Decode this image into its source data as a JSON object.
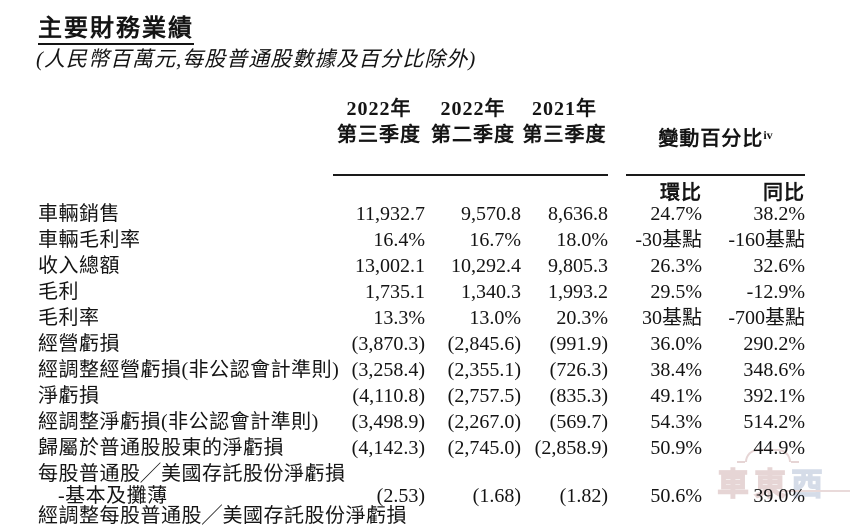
{
  "page": {
    "title": "主要財務業績",
    "subtitle": "(人民幣百萬元,每股普通股數據及百分比除外)"
  },
  "table": {
    "col_headers": [
      {
        "line1": "2022年",
        "line2": "第三季度"
      },
      {
        "line1": "2022年",
        "line2": "第二季度"
      },
      {
        "line1": "2021年",
        "line2": "第三季度"
      }
    ],
    "change_header": {
      "label": "變動百分比",
      "footnote": "iv"
    },
    "sub_headers": [
      "環比",
      "同比"
    ],
    "rows": [
      {
        "label": "車輛銷售",
        "values": [
          "11,932.7",
          "9,570.8",
          "8,636.8",
          "24.7%",
          "38.2%"
        ]
      },
      {
        "label": "車輛毛利率",
        "values": [
          "16.4%",
          "16.7%",
          "18.0%",
          "-30基點",
          "-160基點"
        ]
      },
      {
        "label": "收入總額",
        "values": [
          "13,002.1",
          "10,292.4",
          "9,805.3",
          "26.3%",
          "32.6%"
        ]
      },
      {
        "label": "毛利",
        "values": [
          "1,735.1",
          "1,340.3",
          "1,993.2",
          "29.5%",
          "-12.9%"
        ]
      },
      {
        "label": "毛利率",
        "values": [
          "13.3%",
          "13.0%",
          "20.3%",
          "30基點",
          "-700基點"
        ]
      },
      {
        "label": "經營虧損",
        "values": [
          "(3,870.3)",
          "(2,845.6)",
          "(991.9)",
          "36.0%",
          "290.2%"
        ]
      },
      {
        "label": "經調整經營虧損(非公認會計準則)",
        "values": [
          "(3,258.4)",
          "(2,355.1)",
          "(726.3)",
          "38.4%",
          "348.6%"
        ]
      },
      {
        "label": "淨虧損",
        "values": [
          "(4,110.8)",
          "(2,757.5)",
          "(835.3)",
          "49.1%",
          "392.1%"
        ]
      },
      {
        "label": "經調整淨虧損(非公認會計準則)",
        "values": [
          "(3,498.9)",
          "(2,267.0)",
          "(569.7)",
          "54.3%",
          "514.2%"
        ]
      },
      {
        "label": "歸屬於普通股股東的淨虧損",
        "values": [
          "(4,142.3)",
          "(2,745.0)",
          "(2,858.9)",
          "50.9%",
          "44.9%"
        ]
      },
      {
        "label": "每股普通股╱美國存託股份淨虧損",
        "values": [
          "",
          "",
          "",
          "",
          ""
        ]
      },
      {
        "label": "-基本及攤薄",
        "values": [
          "(2.53)",
          "(1.68)",
          "(1.82)",
          "50.6%",
          "39.0%"
        ],
        "indent": true
      },
      {
        "label": "經調整每股普通股╱美國存託股份淨虧損",
        "values": [
          "",
          "",
          "",
          "",
          ""
        ],
        "clipped": true
      }
    ]
  },
  "watermark": {
    "part1": "車東",
    "part2": "西",
    "color_primary": "#d2b3b3",
    "color_secondary": "#b3c0d6"
  }
}
